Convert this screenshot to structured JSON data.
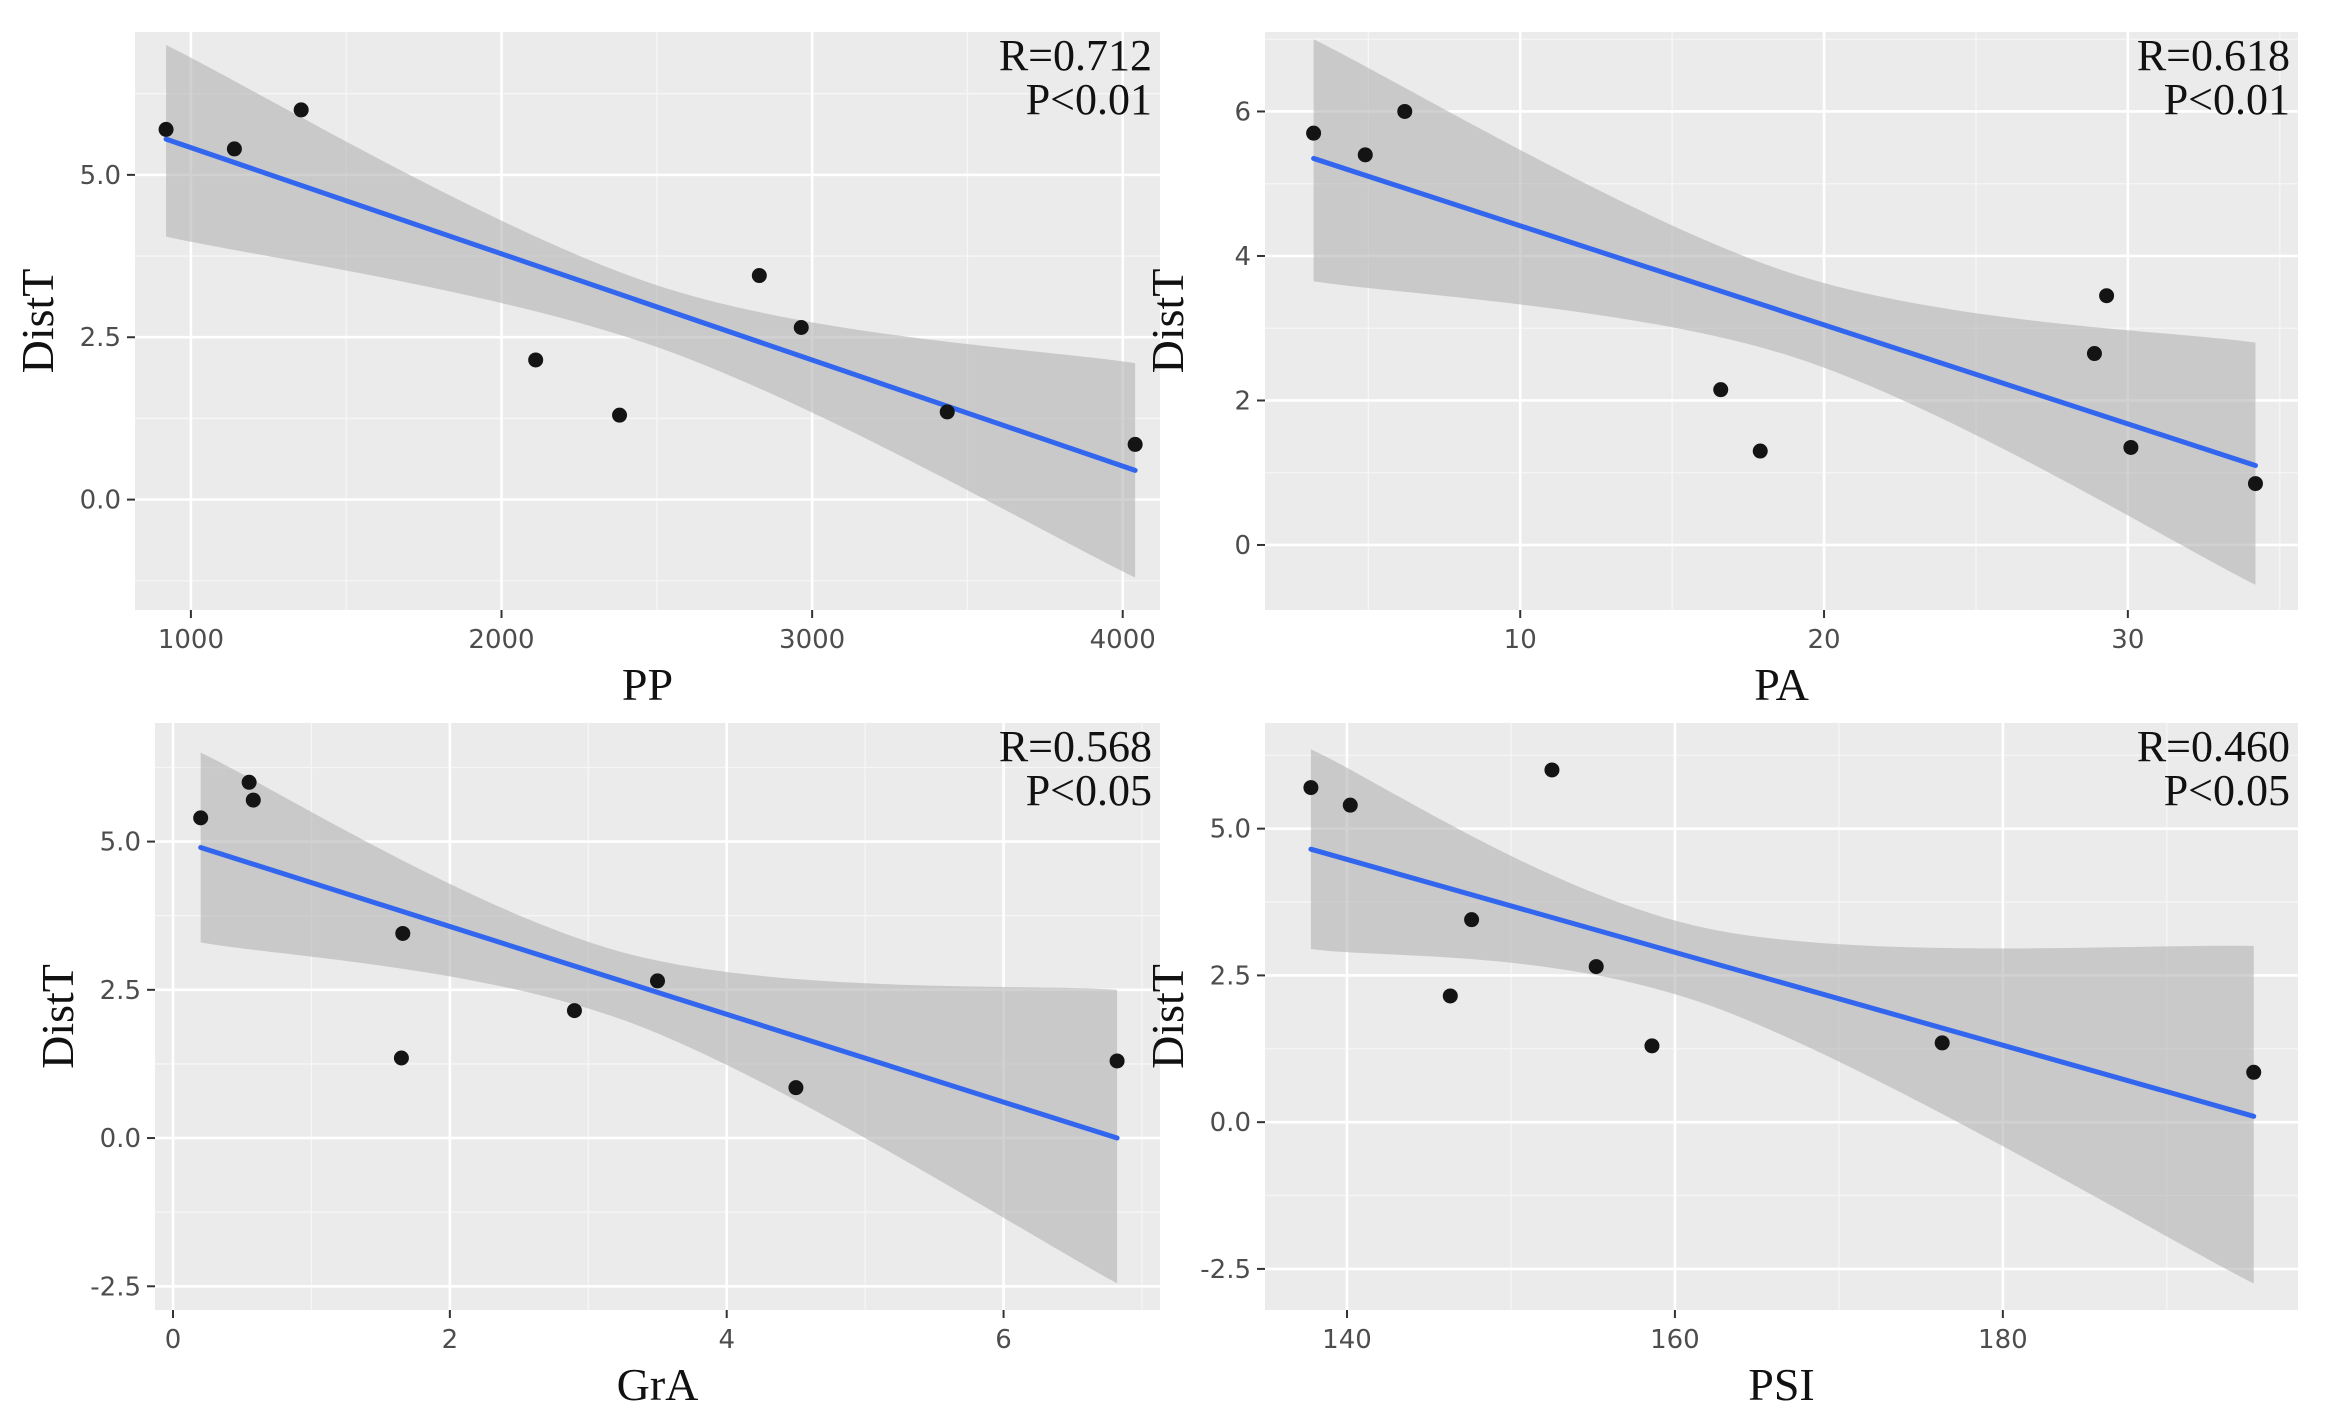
{
  "chart_data": [
    {
      "type": "scatter",
      "xlabel": "PP",
      "ylabel": "DistT",
      "annotation": [
        "R=0.712",
        "P<0.01"
      ],
      "xlim": [
        820,
        4120
      ],
      "ylim": [
        -1.7,
        7.2
      ],
      "xticks": [
        1000,
        2000,
        3000,
        4000
      ],
      "yticks": [
        0.0,
        2.5,
        5.0
      ],
      "ytick_labels": [
        "0.0",
        "2.5",
        "5.0"
      ],
      "points": [
        [
          920,
          5.7
        ],
        [
          1140,
          5.4
        ],
        [
          1355,
          6.0
        ],
        [
          2110,
          2.15
        ],
        [
          2380,
          1.3
        ],
        [
          2830,
          3.45
        ],
        [
          2965,
          2.65
        ],
        [
          3435,
          1.35
        ],
        [
          4040,
          0.85
        ]
      ],
      "fit_line": [
        [
          920,
          5.55
        ],
        [
          4040,
          0.45
        ]
      ],
      "ci_band": {
        "x": [
          920,
          2500,
          4040
        ],
        "lower": [
          4.05,
          2.35,
          -1.2
        ],
        "upper": [
          7.0,
          3.3,
          2.1
        ]
      }
    },
    {
      "type": "scatter",
      "xlabel": "PA",
      "ylabel": "DistT",
      "annotation": [
        "R=0.618",
        "P<0.01"
      ],
      "xlim": [
        1.6,
        35.6
      ],
      "ylim": [
        -0.9,
        7.1
      ],
      "xticks": [
        10,
        20,
        30
      ],
      "yticks": [
        0,
        2,
        4,
        6
      ],
      "ytick_labels": [
        "0",
        "2",
        "4",
        "6"
      ],
      "points": [
        [
          3.2,
          5.7
        ],
        [
          4.9,
          5.4
        ],
        [
          6.2,
          6.0
        ],
        [
          16.6,
          2.15
        ],
        [
          17.9,
          1.3
        ],
        [
          28.9,
          2.65
        ],
        [
          29.3,
          3.45
        ],
        [
          30.1,
          1.35
        ],
        [
          34.2,
          0.85
        ]
      ],
      "fit_line": [
        [
          3.2,
          5.35
        ],
        [
          34.2,
          1.1
        ]
      ],
      "ci_band": {
        "x": [
          3.2,
          19,
          34.2
        ],
        "lower": [
          3.65,
          2.6,
          -0.55
        ],
        "upper": [
          7.0,
          3.75,
          2.8
        ]
      }
    },
    {
      "type": "scatter",
      "xlabel": "GrA",
      "ylabel": "DistT",
      "annotation": [
        "R=0.568",
        "P<0.05"
      ],
      "xlim": [
        -0.13,
        7.13
      ],
      "ylim": [
        -2.9,
        7.0
      ],
      "xticks": [
        0,
        2,
        4,
        6
      ],
      "yticks": [
        -2.5,
        0.0,
        2.5,
        5.0
      ],
      "ytick_labels": [
        "-2.5",
        "0.0",
        "2.5",
        "5.0"
      ],
      "points": [
        [
          0.2,
          5.4
        ],
        [
          0.55,
          6.0
        ],
        [
          0.58,
          5.7
        ],
        [
          1.65,
          1.35
        ],
        [
          1.66,
          3.45
        ],
        [
          2.9,
          2.15
        ],
        [
          3.5,
          2.65
        ],
        [
          4.5,
          0.85
        ],
        [
          6.82,
          1.3
        ]
      ],
      "fit_line": [
        [
          0.2,
          4.9
        ],
        [
          6.82,
          0.0
        ]
      ],
      "ci_band": {
        "x": [
          0.2,
          3.3,
          6.82
        ],
        "lower": [
          3.3,
          1.95,
          -2.45
        ],
        "upper": [
          6.5,
          3.1,
          2.5
        ]
      }
    },
    {
      "type": "scatter",
      "xlabel": "PSI",
      "ylabel": "DistT",
      "annotation": [
        "R=0.460",
        "P<0.05"
      ],
      "xlim": [
        135,
        198
      ],
      "ylim": [
        -3.2,
        6.8
      ],
      "xticks": [
        140,
        160,
        180
      ],
      "yticks": [
        -2.5,
        0.0,
        2.5,
        5.0
      ],
      "ytick_labels": [
        "-2.5",
        "0.0",
        "2.5",
        "5.0"
      ],
      "points": [
        [
          137.8,
          5.7
        ],
        [
          140.2,
          5.4
        ],
        [
          146.3,
          2.15
        ],
        [
          147.6,
          3.45
        ],
        [
          152.5,
          6.0
        ],
        [
          155.2,
          2.65
        ],
        [
          158.6,
          1.3
        ],
        [
          176.3,
          1.35
        ],
        [
          195.3,
          0.85
        ]
      ],
      "fit_line": [
        [
          137.8,
          4.65
        ],
        [
          195.3,
          0.1
        ]
      ],
      "ci_band": {
        "x": [
          137.8,
          162,
          195.3
        ],
        "lower": [
          2.95,
          2.0,
          -2.75
        ],
        "upper": [
          6.35,
          3.3,
          3.0
        ]
      }
    }
  ]
}
